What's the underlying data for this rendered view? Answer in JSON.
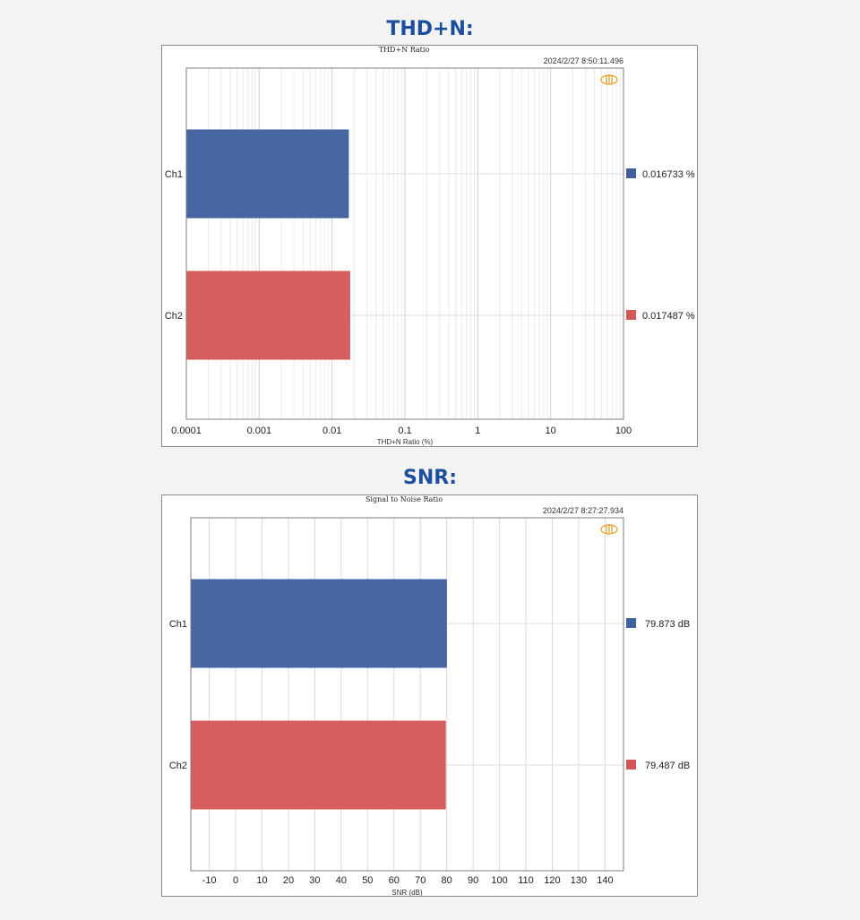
{
  "sections": [
    {
      "heading": "THD+N:"
    },
    {
      "heading": "SNR:"
    }
  ],
  "chart_data": [
    {
      "type": "bar",
      "orientation": "horizontal",
      "title": "THD+N Ratio",
      "timestamp": "2024/2/27 8:50:11.496",
      "xlabel": "THD+N Ratio (%)",
      "xscale": "log",
      "xlim": [
        0.0001,
        100
      ],
      "xticks": [
        "0.0001",
        "0.001",
        "0.01",
        "0.1",
        "1",
        "10",
        "100"
      ],
      "grid": true,
      "categories": [
        "Ch1",
        "Ch2"
      ],
      "values": [
        0.016733,
        0.017487
      ],
      "colors": [
        "#40609e",
        "#d45757"
      ],
      "value_labels": [
        "0.016733  %",
        "0.017487  %"
      ],
      "logo_icon": "audio-precision-logo-icon"
    },
    {
      "type": "bar",
      "orientation": "horizontal",
      "title": "Signal to Noise Ratio",
      "timestamp": "2024/2/27 8:27:27.934",
      "xlabel": "SNR (dB)",
      "xscale": "linear",
      "xlim": [
        -17,
        147
      ],
      "xticks": [
        "-10",
        "0",
        "10",
        "20",
        "30",
        "40",
        "50",
        "60",
        "70",
        "80",
        "90",
        "100",
        "110",
        "120",
        "130",
        "140"
      ],
      "grid": true,
      "categories": [
        "Ch1",
        "Ch2"
      ],
      "values": [
        79.873,
        79.487
      ],
      "colors": [
        "#40609e",
        "#d45757"
      ],
      "value_labels": [
        "79.873  dB",
        "79.487  dB"
      ],
      "logo_icon": "audio-precision-logo-icon"
    }
  ]
}
